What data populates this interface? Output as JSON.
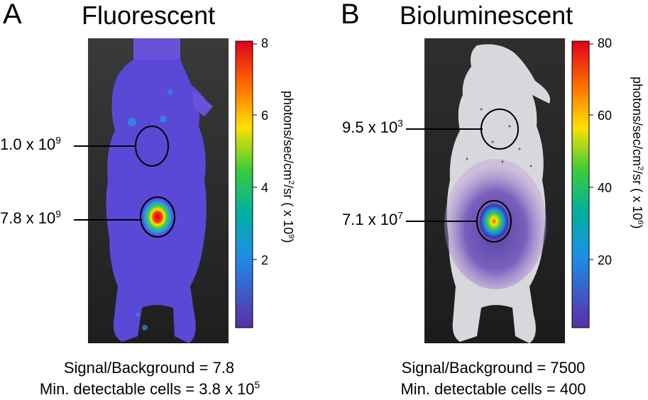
{
  "panels": [
    {
      "letter": "A",
      "title": "Fluorescent",
      "regions": [
        {
          "mantissa": "1.0 x 10",
          "exponent": "9"
        },
        {
          "mantissa": "7.8 x 10",
          "exponent": "9"
        }
      ],
      "colorbar": {
        "ticks": [
          "8",
          "6",
          "4",
          "2"
        ],
        "unit_base": "photons/sec/cm",
        "unit_sup": "2",
        "unit_mid": "/sr ( x 10",
        "unit_exp": "9",
        "unit_end": ")"
      },
      "footer": {
        "signal_background": "Signal/Background = 7.8",
        "min_cells_mantissa": "Min. detectable cells = 3.8 x 10",
        "min_cells_exponent": "5"
      }
    },
    {
      "letter": "B",
      "title": "Bioluminescent",
      "regions": [
        {
          "mantissa": "9.5 x 10",
          "exponent": "3"
        },
        {
          "mantissa": "7.1 x 10",
          "exponent": "7"
        }
      ],
      "colorbar": {
        "ticks": [
          "80",
          "60",
          "40",
          "20"
        ],
        "unit_base": "photons/sec/cm",
        "unit_sup": "2",
        "unit_mid": "/sr ( x 10",
        "unit_exp": "6",
        "unit_end": ")"
      },
      "footer": {
        "signal_background": "Signal/Background = 7500",
        "min_cells": "Min. detectable cells = 400"
      }
    }
  ],
  "colors": {
    "fluor_body": "#5a49d6",
    "biolum_body": "#d8d8dc",
    "image_background": "#2a2a2a"
  }
}
